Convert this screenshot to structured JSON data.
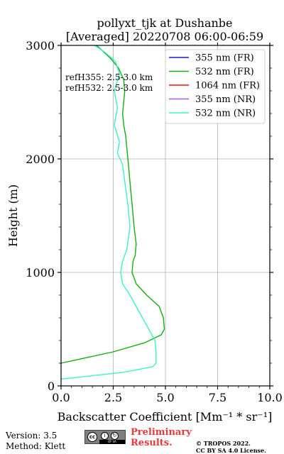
{
  "chart_data": {
    "type": "line",
    "title": [
      "pollyxt_tjk at Dushanbe",
      "[Averaged] 20220708 06:00-06:59"
    ],
    "xlabel": "Backscatter Coefficient [Mm⁻¹ * sr⁻¹]",
    "ylabel": "Height (m)",
    "xlim": [
      0,
      10
    ],
    "ylim": [
      0,
      3000
    ],
    "xticks": [
      "0.0",
      "2.5",
      "5.0",
      "7.5",
      "10.0"
    ],
    "yticks": [
      "0",
      "1000",
      "2000",
      "3000"
    ],
    "grid": true,
    "legend_position": "top-right",
    "legend": [
      {
        "name": "355 nm (FR)",
        "color": "#1a1ad8"
      },
      {
        "name": "532 nm (FR)",
        "color": "#12b012"
      },
      {
        "name": "1064 nm (FR)",
        "color": "#e01b1b"
      },
      {
        "name": "355 nm (NR)",
        "color": "#a45ee5"
      },
      {
        "name": "532 nm (NR)",
        "color": "#3cf2c8"
      }
    ],
    "annotations": [
      "refH355:  2.5-3.0 km",
      "refH532:  2.5-3.0 km"
    ],
    "series": [
      {
        "name": "532 nm (FR)",
        "color": "#12b012",
        "x": [
          1.7,
          2.0,
          2.4,
          2.75,
          3.0,
          3.05,
          3.0,
          2.95,
          3.0,
          3.1,
          3.2,
          3.3,
          3.4,
          3.5,
          3.6,
          3.55,
          3.45,
          3.4,
          3.6,
          4.1,
          4.7,
          4.9,
          4.95,
          4.8,
          4.0,
          2.5,
          1.0,
          0.0
        ],
        "y": [
          3000,
          2950,
          2880,
          2800,
          2700,
          2600,
          2500,
          2400,
          2300,
          2200,
          2000,
          1800,
          1600,
          1400,
          1250,
          1150,
          1100,
          1000,
          900,
          800,
          700,
          600,
          500,
          450,
          380,
          300,
          240,
          200
        ]
      },
      {
        "name": "532 nm (NR)",
        "color": "#3cf2c8",
        "x": [
          1.6,
          2.1,
          2.6,
          2.8,
          2.55,
          2.7,
          2.55,
          2.8,
          2.7,
          2.95,
          3.05,
          3.2,
          3.3,
          3.15,
          2.95,
          2.85,
          2.95,
          3.3,
          3.6,
          3.9,
          4.2,
          4.5,
          4.55,
          4.55,
          4.4,
          3.0,
          1.5,
          0.0
        ],
        "y": [
          3000,
          2940,
          2860,
          2750,
          2600,
          2450,
          2300,
          2150,
          2050,
          1950,
          1800,
          1600,
          1400,
          1200,
          1100,
          1000,
          900,
          800,
          700,
          600,
          500,
          400,
          300,
          200,
          170,
          120,
          90,
          60
        ]
      }
    ]
  },
  "footer": {
    "version": "Version: 3.5",
    "method": "Method: Klett",
    "preliminary": "Preliminary\nResults.",
    "copyright": "© TROPOS 2022.\nCC BY SA 4.0 License.",
    "license_badge": "BY SA"
  }
}
